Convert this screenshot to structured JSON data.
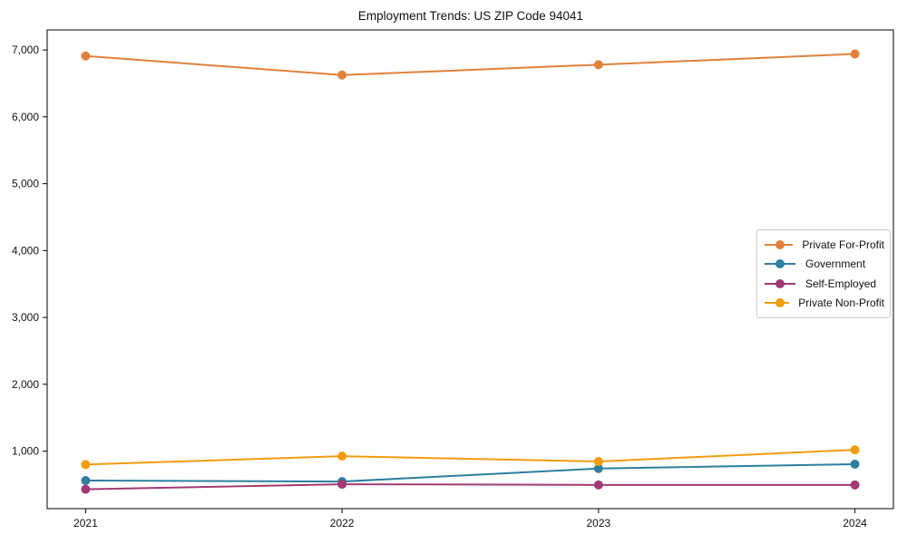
{
  "figure": {
    "background": "#ffffff",
    "axis_color": "#000000",
    "text_color": "#111111",
    "legend_border_color": "#cccccc"
  },
  "chart_data": {
    "type": "line",
    "title": "Employment Trends: US ZIP Code 94041",
    "x": [
      "2021",
      "2022",
      "2023",
      "2024"
    ],
    "xlabel": "",
    "ylabel": "",
    "series": [
      {
        "name": "Private For-Profit",
        "color": "#e1813b",
        "values": [
          6910,
          6625,
          6780,
          6940
        ]
      },
      {
        "name": "Government",
        "color": "#2e7fa0",
        "values": [
          560,
          545,
          740,
          805
        ]
      },
      {
        "name": "Self-Employed",
        "color": "#a13a73",
        "values": [
          430,
          505,
          495,
          495
        ]
      },
      {
        "name": "Private Non-Profit",
        "color": "#f19d0f",
        "values": [
          800,
          925,
          845,
          1020
        ]
      }
    ],
    "ylim": [
      140,
      7300
    ],
    "yticks": [
      1000,
      2000,
      3000,
      4000,
      5000,
      6000,
      7000
    ],
    "ytick_labels": [
      "1,000",
      "2,000",
      "3,000",
      "4,000",
      "5,000",
      "6,000",
      "7,000"
    ],
    "grid": false,
    "legend_position": "center right",
    "marker": "circle",
    "line_width": 2,
    "marker_radius": 5
  }
}
